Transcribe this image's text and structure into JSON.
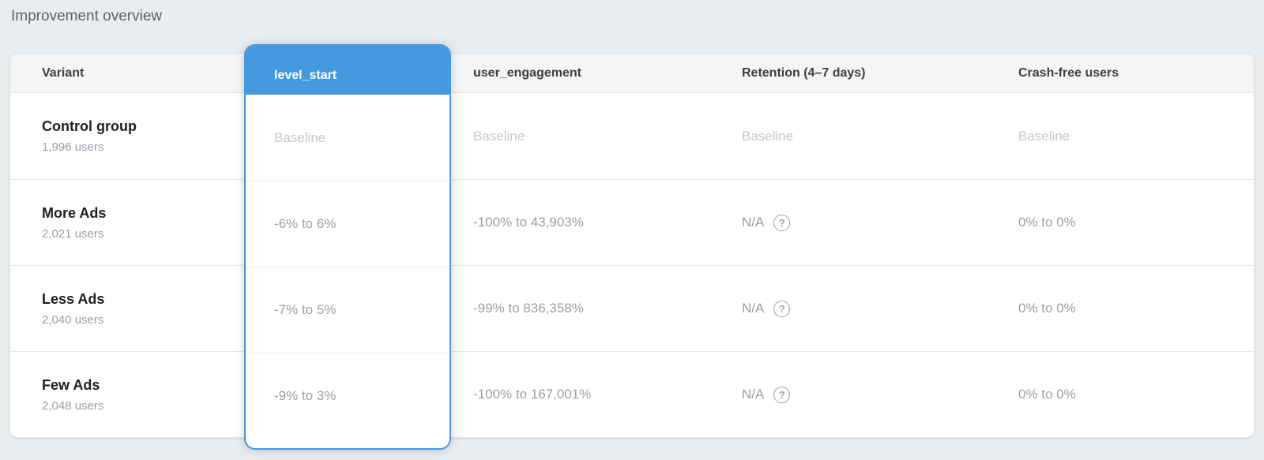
{
  "page": {
    "title": "Improvement overview"
  },
  "colors": {
    "accent": "#4599de",
    "header_bg": "#f5f5f5",
    "page_bg": "#eaedf0"
  },
  "icons": {
    "help": "?"
  },
  "table": {
    "columns": [
      {
        "key": "variant",
        "label": "Variant"
      },
      {
        "key": "level_start",
        "label": "level_start",
        "selected": true
      },
      {
        "key": "user_engagement",
        "label": "user_engagement"
      },
      {
        "key": "retention",
        "label": "Retention (4–7 days)"
      },
      {
        "key": "crash_free",
        "label": "Crash-free users"
      }
    ],
    "rows": [
      {
        "variant": "Control group",
        "users": "1,996 users",
        "level_start": "Baseline",
        "user_engagement": "Baseline",
        "retention": "Baseline",
        "crash_free": "Baseline"
      },
      {
        "variant": "More Ads",
        "users": "2,021 users",
        "level_start": "-6% to 6%",
        "user_engagement": "-100% to 43,903%",
        "retention": "N/A",
        "crash_free": "0% to 0%"
      },
      {
        "variant": "Less Ads",
        "users": "2,040 users",
        "level_start": "-7% to 5%",
        "user_engagement": "-99% to 836,358%",
        "retention": "N/A",
        "crash_free": "0% to 0%"
      },
      {
        "variant": "Few Ads",
        "users": "2,048 users",
        "level_start": "-9% to 3%",
        "user_engagement": "-100% to 167,001%",
        "retention": "N/A",
        "crash_free": "0% to 0%"
      }
    ]
  }
}
